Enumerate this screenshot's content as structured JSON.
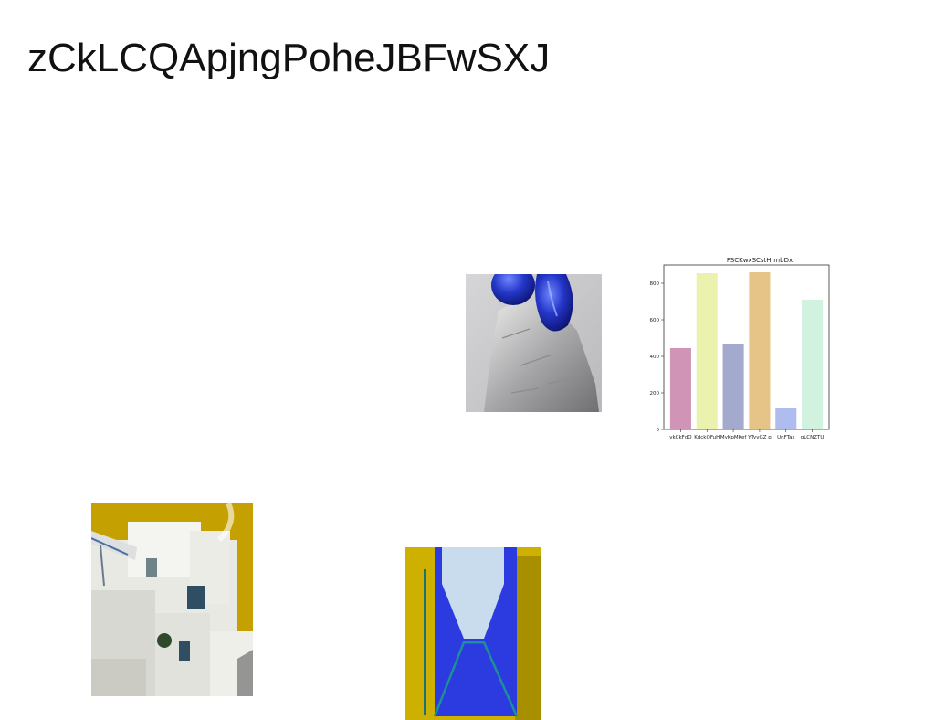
{
  "page": {
    "title": "zCkLCQApjngPoheJBFwSXJ"
  },
  "images": [
    {
      "name": "blue-glass-on-rock",
      "colors": {
        "bg": "#c8c8ca",
        "glass": "#2a40c8",
        "rock": "#b6b6b8"
      }
    },
    {
      "name": "white-building",
      "colors": {
        "sky": "#c8a000",
        "wall": "#f2f2ee",
        "shade": "#c9c9c2"
      }
    },
    {
      "name": "blue-envelope",
      "colors": {
        "bg": "#cdb000",
        "envelope": "#2b3be0",
        "paper": "#c8dcee",
        "teal": "#1e8f96"
      }
    }
  ],
  "chart_data": {
    "type": "bar",
    "title": "FSCKwxSCstHrmbDx",
    "categories": [
      "vkCkFdQ",
      "KdckOFuH",
      "MyKpMKef",
      "YTyvGZ p",
      "UnFTas",
      "gLCNZTU"
    ],
    "values": [
      445,
      855,
      465,
      860,
      115,
      710
    ],
    "colors": [
      "#cf94b6",
      "#eaf2ae",
      "#a4aacd",
      "#e6c386",
      "#aebcee",
      "#d2f2e0"
    ],
    "ylim": [
      0,
      900
    ],
    "yticks": [
      0,
      200,
      400,
      600,
      800
    ]
  }
}
